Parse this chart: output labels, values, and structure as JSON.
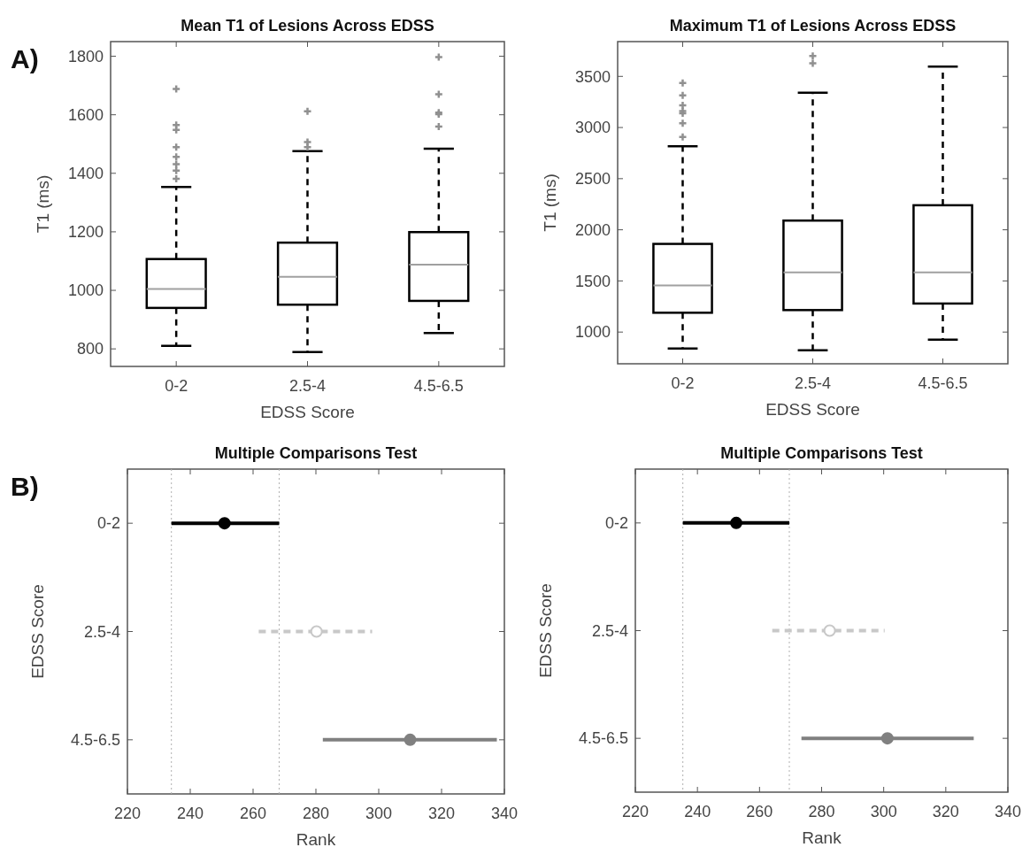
{
  "chart_data": [
    {
      "type": "box",
      "title": "Mean T1 of Lesions Across EDSS",
      "xlabel": "EDSS Score",
      "ylabel": "T1 (ms)",
      "annotations": [
        "A)"
      ],
      "categories": [
        "0-2",
        "2.5-4",
        "4.5-6.5"
      ],
      "ylim": [
        740,
        1850
      ],
      "yticks": [
        800,
        1000,
        1200,
        1400,
        1600,
        1800
      ],
      "series": [
        {
          "color": "#000000",
          "boxes": [
            {
              "low": 810,
              "q1": 940,
              "median": 1005,
              "q3": 1107,
              "high": 1353,
              "outliers": [
                1688,
                1565,
                1548,
                1489,
                1456,
                1431,
                1409,
                1381
              ]
            },
            {
              "low": 789,
              "q1": 951,
              "median": 1046,
              "q3": 1163,
              "high": 1476,
              "outliers": [
                1612,
                1507,
                1489
              ]
            },
            {
              "low": 854,
              "q1": 964,
              "median": 1088,
              "q3": 1199,
              "high": 1484,
              "outliers": [
                1797,
                1670,
                1607,
                1602,
                1560
              ]
            }
          ]
        }
      ]
    },
    {
      "type": "box",
      "title": "Maximum T1 of Lesions Across EDSS",
      "xlabel": "EDSS Score",
      "ylabel": "T1 (ms)",
      "categories": [
        "0-2",
        "2.5-4",
        "4.5-6.5"
      ],
      "ylim": [
        690,
        3840
      ],
      "yticks": [
        1000,
        1500,
        2000,
        2500,
        3000,
        3500
      ],
      "series": [
        {
          "color": "#000000",
          "boxes": [
            {
              "low": 840,
              "q1": 1189,
              "median": 1455,
              "q3": 1862,
              "high": 2817,
              "outliers": [
                3436,
                3314,
                3218,
                3160,
                3138,
                3042,
                2907
              ]
            },
            {
              "low": 821,
              "q1": 1215,
              "median": 1583,
              "q3": 2090,
              "high": 3340,
              "outliers": [
                3699,
                3628
              ]
            },
            {
              "low": 926,
              "q1": 1279,
              "median": 1583,
              "q3": 2240,
              "high": 3596
            }
          ]
        }
      ]
    },
    {
      "type": "scatter",
      "orientation": "horizontal",
      "title": "Multiple Comparisons Test",
      "xlabel": "Rank",
      "ylabel": "EDSS Score",
      "annotations": [
        "B)"
      ],
      "categories": [
        "0-2",
        "2.5-4",
        "4.5-6.5"
      ],
      "xlim": [
        220,
        340
      ],
      "xticks": [
        220,
        240,
        260,
        280,
        300,
        320,
        340
      ],
      "marker": "circle",
      "ref_lines": [
        {
          "axis": "x",
          "value": 234.0,
          "color": "#b0b0b0",
          "line_style": "dotted"
        },
        {
          "axis": "x",
          "value": 268.3,
          "color": "#b0b0b0",
          "line_style": "dotted"
        }
      ],
      "series": [
        {
          "color": "#000000",
          "line_style": "solid",
          "values": [
            250.9,
            null,
            null
          ],
          "errors": [
            [
              234.0,
              268.3
            ],
            null,
            null
          ]
        },
        {
          "color": "#c8c8c8",
          "line_style": "dashed",
          "values": [
            null,
            280.2,
            null
          ],
          "errors": [
            null,
            [
              261.8,
              297.9
            ],
            null
          ]
        },
        {
          "color": "#808080",
          "line_style": "solid",
          "values": [
            null,
            null,
            310.0
          ],
          "errors": [
            null,
            null,
            [
              282.2,
              337.6
            ]
          ]
        }
      ]
    },
    {
      "type": "scatter",
      "orientation": "horizontal",
      "title": "Multiple Comparisons Test",
      "xlabel": "Rank",
      "ylabel": "EDSS Score",
      "categories": [
        "0-2",
        "2.5-4",
        "4.5-6.5"
      ],
      "xlim": [
        220,
        340
      ],
      "xticks": [
        220,
        240,
        260,
        280,
        300,
        320,
        340
      ],
      "marker": "circle",
      "ref_lines": [
        {
          "axis": "x",
          "value": 235.3,
          "color": "#b0b0b0",
          "line_style": "dotted"
        },
        {
          "axis": "x",
          "value": 269.6,
          "color": "#b0b0b0",
          "line_style": "dotted"
        }
      ],
      "series": [
        {
          "color": "#000000",
          "line_style": "solid",
          "values": [
            252.5,
            null,
            null
          ],
          "errors": [
            [
              235.3,
              269.6
            ],
            null,
            null
          ]
        },
        {
          "color": "#c8c8c8",
          "line_style": "dashed",
          "values": [
            null,
            282.6,
            null
          ],
          "errors": [
            null,
            [
              264.1,
              300.3
            ],
            null
          ]
        },
        {
          "color": "#808080",
          "line_style": "solid",
          "values": [
            null,
            null,
            301.2
          ],
          "errors": [
            null,
            null,
            [
              273.5,
              329.0
            ]
          ]
        }
      ]
    }
  ]
}
